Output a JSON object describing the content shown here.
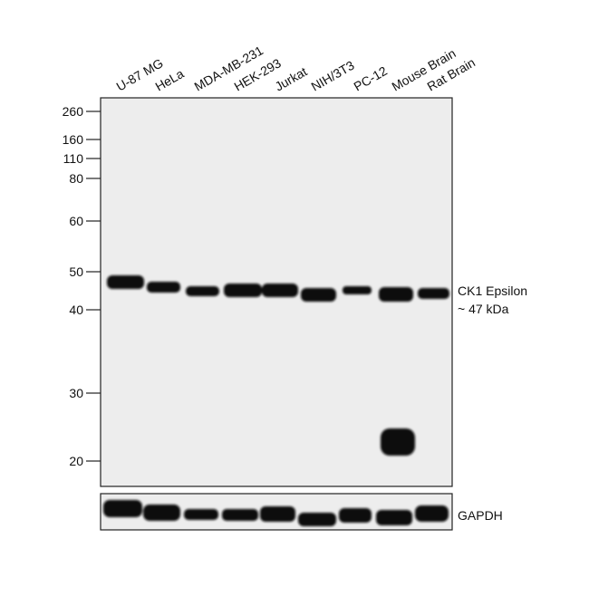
{
  "lanes": [
    "U-87 MG",
    "HeLa",
    "MDA-MB-231",
    "HEK-293",
    "Jurkat",
    "NIH/3T3",
    "PC-12",
    "Mouse Brain",
    "Rat Brain"
  ],
  "markers": [
    260,
    160,
    110,
    80,
    60,
    50,
    40,
    30,
    20
  ],
  "bands": {
    "target": "CK1 Epsilon",
    "size": "~ 47 kDa",
    "loading_control": "GAPDH"
  }
}
